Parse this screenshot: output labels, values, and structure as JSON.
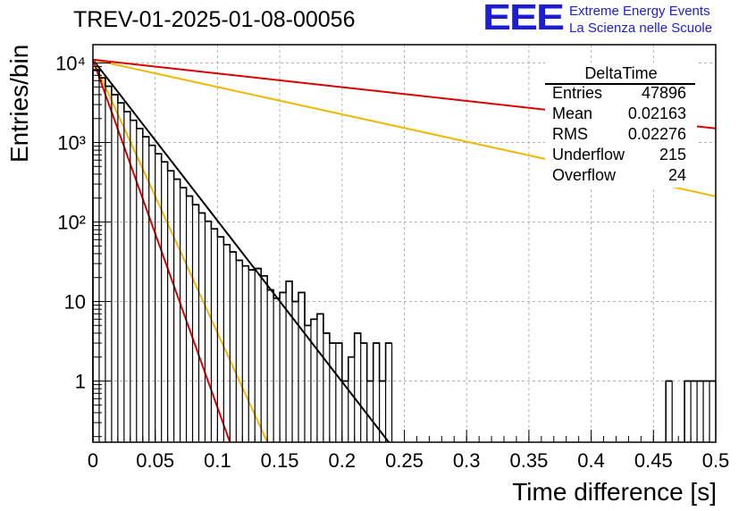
{
  "header": {
    "run_title": "TREV-01-2025-01-08-00056",
    "logo_text": "EEE",
    "logo_line1": "Extreme Energy Events",
    "logo_line2": "La Scienza nelle Scuole"
  },
  "stats": {
    "title": "DeltaTime",
    "rows": [
      {
        "label": "Entries",
        "value": "47896"
      },
      {
        "label": "Mean",
        "value": "0.02163"
      },
      {
        "label": "RMS",
        "value": "0.02276"
      },
      {
        "label": "Underflow",
        "value": "215"
      },
      {
        "label": "Overflow",
        "value": "24"
      }
    ]
  },
  "chart_data": {
    "type": "line",
    "title": "TREV-01-2025-01-08-00056",
    "xlabel": "Time difference [s]",
    "ylabel": "Entries/bin",
    "xlim": [
      0,
      0.5
    ],
    "ylim": [
      0.17,
      17000
    ],
    "yscale": "log",
    "grid": true,
    "legend": "top-right",
    "x_ticks": [
      "0",
      "0.05",
      "0.1",
      "0.15",
      "0.2",
      "0.25",
      "0.3",
      "0.35",
      "0.4",
      "0.45",
      "0.5"
    ],
    "y_ticks": [
      {
        "value": 1,
        "label": "1"
      },
      {
        "value": 10,
        "label": "10"
      },
      {
        "value": 100,
        "label": "10²"
      },
      {
        "value": 1000,
        "label": "10³"
      },
      {
        "value": 10000,
        "label": "10⁴"
      }
    ],
    "histogram": {
      "color": "#000000",
      "bin_width": 0.005,
      "points": [
        [
          0.0025,
          8200
        ],
        [
          0.0075,
          6500
        ],
        [
          0.0125,
          5100
        ],
        [
          0.0175,
          4000
        ],
        [
          0.0225,
          3150
        ],
        [
          0.0275,
          2450
        ],
        [
          0.0325,
          1900
        ],
        [
          0.0375,
          1500
        ],
        [
          0.0425,
          1180
        ],
        [
          0.0475,
          920
        ],
        [
          0.0525,
          720
        ],
        [
          0.0575,
          570
        ],
        [
          0.0625,
          440
        ],
        [
          0.0675,
          345
        ],
        [
          0.0725,
          270
        ],
        [
          0.0775,
          212
        ],
        [
          0.0825,
          165
        ],
        [
          0.0875,
          130
        ],
        [
          0.0925,
          102
        ],
        [
          0.0975,
          82
        ],
        [
          0.1025,
          65
        ],
        [
          0.1075,
          52
        ],
        [
          0.1125,
          42
        ],
        [
          0.1175,
          33
        ],
        [
          0.1225,
          28
        ],
        [
          0.1275,
          25
        ],
        [
          0.1325,
          26
        ],
        [
          0.1375,
          21
        ],
        [
          0.1425,
          14
        ],
        [
          0.1475,
          11
        ],
        [
          0.1525,
          13
        ],
        [
          0.1575,
          18
        ],
        [
          0.1625,
          10
        ],
        [
          0.1675,
          13
        ],
        [
          0.1725,
          5
        ],
        [
          0.1775,
          6
        ],
        [
          0.1825,
          7
        ],
        [
          0.1875,
          4
        ],
        [
          0.1925,
          3
        ],
        [
          0.1975,
          3
        ],
        [
          0.2025,
          1
        ],
        [
          0.2075,
          2
        ],
        [
          0.2125,
          4
        ],
        [
          0.2175,
          3
        ],
        [
          0.2225,
          1
        ],
        [
          0.2275,
          3
        ],
        [
          0.2325,
          1
        ],
        [
          0.2375,
          3
        ],
        [
          0.4625,
          1
        ],
        [
          0.4775,
          1
        ],
        [
          0.4825,
          1
        ],
        [
          0.4875,
          1
        ],
        [
          0.4925,
          1
        ],
        [
          0.4975,
          1
        ]
      ]
    },
    "fits": [
      {
        "color": "#000000",
        "points": [
          [
            0,
            11000
          ],
          [
            0.2375,
            0.17
          ]
        ]
      },
      {
        "color": "#f0b800",
        "points": [
          [
            0,
            11000
          ],
          [
            0.14,
            0.17
          ]
        ]
      },
      {
        "color": "#dd0000",
        "points": [
          [
            0,
            11000
          ],
          [
            0.11,
            0.17
          ]
        ]
      },
      {
        "color": "#f0b800",
        "points": [
          [
            0,
            11000
          ],
          [
            0.5,
            210
          ]
        ]
      },
      {
        "color": "#dd0000",
        "points": [
          [
            0,
            11000
          ],
          [
            0.5,
            1500
          ]
        ]
      }
    ]
  }
}
